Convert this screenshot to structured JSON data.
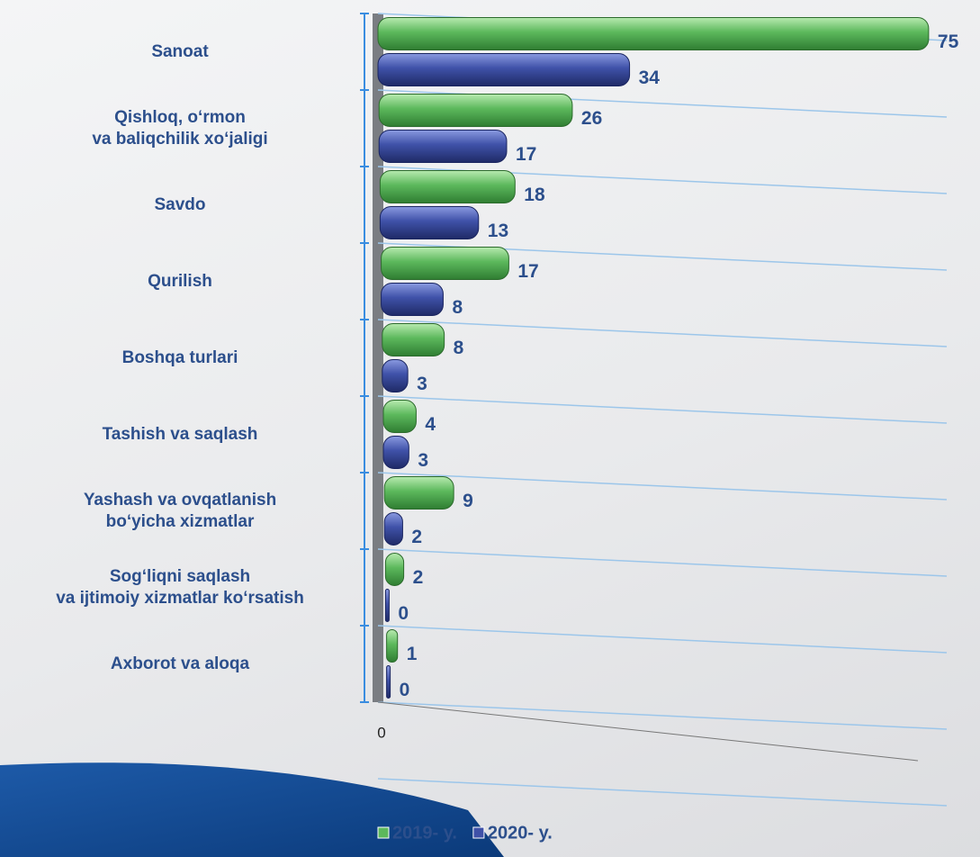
{
  "chart_data": {
    "type": "bar",
    "orientation": "horizontal",
    "categories": [
      "Sanoat",
      "Qishloq, o‘rmon\nva baliqchilik xo‘jaligi",
      "Savdo",
      "Qurilish",
      "Boshqa turlari",
      "Tashish va saqlash",
      "Yashash va ovqatlanish\nbo‘yicha xizmatlar",
      "Sog‘liqni saqlash\nva ijtimoiy xizmatlar ko‘rsatish",
      "Axborot va aloqa"
    ],
    "series": [
      {
        "name": "2019- y.",
        "color": "#5cb85c",
        "values": [
          75,
          26,
          18,
          17,
          8,
          4,
          9,
          2,
          1
        ]
      },
      {
        "name": "2020- y.",
        "color": "#3f51a8",
        "values": [
          34,
          17,
          13,
          8,
          3,
          3,
          2,
          0,
          0
        ]
      }
    ],
    "xlim": [
      0,
      76
    ],
    "xticks": [
      0
    ],
    "grid": true,
    "legend": "bottom"
  }
}
